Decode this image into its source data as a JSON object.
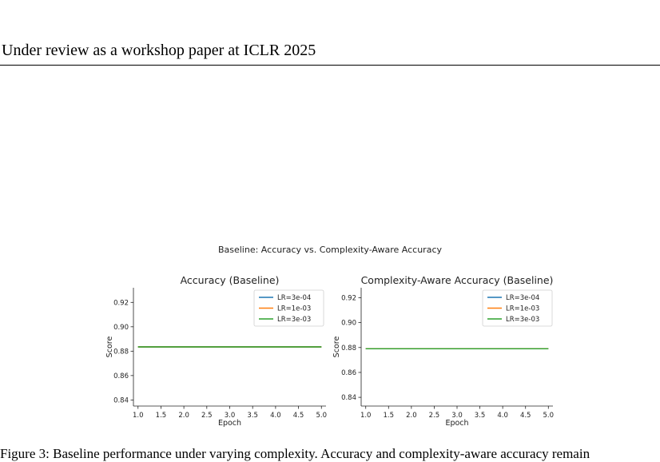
{
  "page": {
    "header": "Under review as a workshop paper at ICLR 2025",
    "suptitle": "Baseline: Accuracy vs. Complexity-Aware Accuracy",
    "caption": "Figure 3: Baseline performance under varying complexity. Accuracy and complexity-aware accuracy remain"
  },
  "colors": {
    "lr_3e-04": "#1f77b4",
    "lr_1e-03": "#ff7f0e",
    "lr_3e-03": "#2ca02c"
  },
  "chart_data": [
    {
      "type": "line",
      "title": "Accuracy (Baseline)",
      "xlabel": "Epoch",
      "ylabel": "Score",
      "xlim": [
        0.9,
        5.1
      ],
      "ylim": [
        0.835,
        0.932
      ],
      "xticks": [
        1.0,
        1.5,
        2.0,
        2.5,
        3.0,
        3.5,
        4.0,
        4.5,
        5.0
      ],
      "xtick_labels": [
        "1.0",
        "1.5",
        "2.0",
        "2.5",
        "3.0",
        "3.5",
        "4.0",
        "4.5",
        "5.0"
      ],
      "yticks": [
        0.84,
        0.86,
        0.88,
        0.9,
        0.92
      ],
      "ytick_labels": [
        "0.84",
        "0.86",
        "0.88",
        "0.90",
        "0.92"
      ],
      "legend_position": "top-right",
      "grid": false,
      "x": [
        1.0,
        2.0,
        3.0,
        4.0,
        5.0
      ],
      "series": [
        {
          "name": "LR=3e-04",
          "color": "#1f77b4",
          "values": [
            0.8835,
            0.8835,
            0.8835,
            0.8835,
            0.8835
          ]
        },
        {
          "name": "LR=1e-03",
          "color": "#ff7f0e",
          "values": [
            0.8835,
            0.8835,
            0.8835,
            0.8835,
            0.8835
          ]
        },
        {
          "name": "LR=3e-03",
          "color": "#2ca02c",
          "values": [
            0.8835,
            0.8835,
            0.8835,
            0.8835,
            0.8835
          ]
        }
      ]
    },
    {
      "type": "line",
      "title": "Complexity-Aware Accuracy (Baseline)",
      "xlabel": "Epoch",
      "ylabel": "Score",
      "xlim": [
        0.9,
        5.1
      ],
      "ylim": [
        0.833,
        0.928
      ],
      "xticks": [
        1.0,
        1.5,
        2.0,
        2.5,
        3.0,
        3.5,
        4.0,
        4.5,
        5.0
      ],
      "xtick_labels": [
        "1.0",
        "1.5",
        "2.0",
        "2.5",
        "3.0",
        "3.5",
        "4.0",
        "4.5",
        "5.0"
      ],
      "yticks": [
        0.84,
        0.86,
        0.88,
        0.9,
        0.92
      ],
      "ytick_labels": [
        "0.84",
        "0.86",
        "0.88",
        "0.90",
        "0.92"
      ],
      "legend_position": "top-right",
      "grid": false,
      "x": [
        1.0,
        2.0,
        3.0,
        4.0,
        5.0
      ],
      "series": [
        {
          "name": "LR=3e-04",
          "color": "#1f77b4",
          "values": [
            0.879,
            0.879,
            0.879,
            0.879,
            0.879
          ]
        },
        {
          "name": "LR=1e-03",
          "color": "#ff7f0e",
          "values": [
            0.879,
            0.879,
            0.879,
            0.879,
            0.879
          ]
        },
        {
          "name": "LR=3e-03",
          "color": "#2ca02c",
          "values": [
            0.879,
            0.879,
            0.879,
            0.879,
            0.879
          ]
        }
      ]
    }
  ]
}
